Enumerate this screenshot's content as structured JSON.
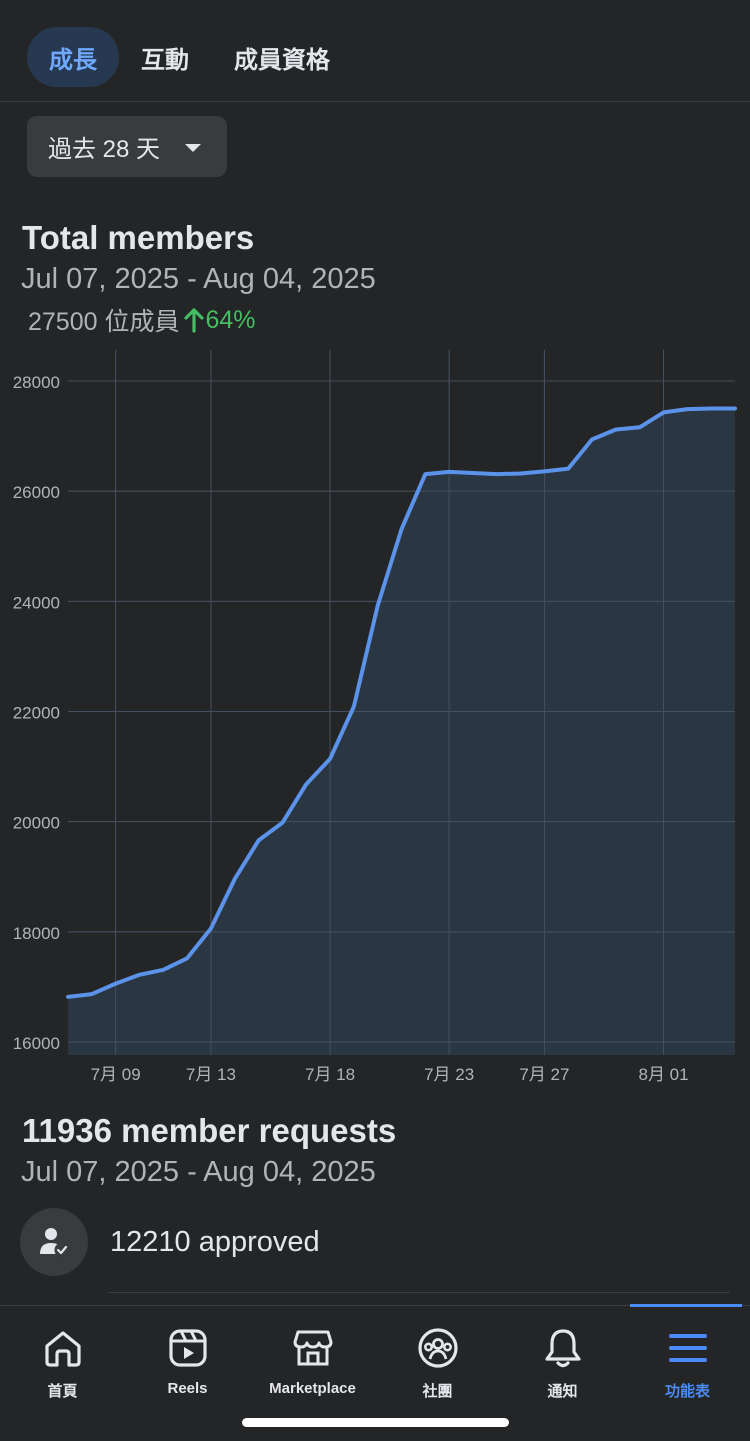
{
  "tabs": [
    {
      "label": "成長",
      "active": true
    },
    {
      "label": "互動",
      "active": false
    },
    {
      "label": "成員資格",
      "active": false
    }
  ],
  "range": {
    "label": "過去 28 天",
    "icon": "caret-down-icon"
  },
  "total_members": {
    "title": "Total members",
    "date_range": "Jul 07, 2025 - Aug 04, 2025",
    "count_text": "27500 位成員",
    "change_text": "64%",
    "change_icon": "arrow-up-icon",
    "change_color": "#45bd62"
  },
  "chart_data": {
    "type": "area",
    "x": [
      "7月 07",
      "7月 08",
      "7月 09",
      "7月 10",
      "7月 11",
      "7月 12",
      "7月 13",
      "7月 14",
      "7月 15",
      "7月 16",
      "7月 17",
      "7月 18",
      "7月 19",
      "7月 20",
      "7月 21",
      "7月 22",
      "7月 23",
      "7月 24",
      "7月 25",
      "7月 26",
      "7月 27",
      "7月 28",
      "7月 29",
      "7月 30",
      "7月 31",
      "8月 01",
      "8月 02",
      "8月 03",
      "8月 04"
    ],
    "series": [
      {
        "values": [
          16820,
          16870,
          17060,
          17220,
          17310,
          17520,
          18060,
          18960,
          19660,
          19980,
          20680,
          21140,
          22090,
          23920,
          25310,
          26310,
          26350,
          26330,
          26310,
          26320,
          26360,
          26410,
          26940,
          27120,
          27160,
          27430,
          27490,
          27500,
          27500
        ],
        "color": "#5b93ea",
        "fill": "#2c3847"
      }
    ],
    "xticks": [
      "7月 09",
      "7月 13",
      "7月 18",
      "7月 23",
      "7月 27",
      "8月 01"
    ],
    "yticks": [
      16000,
      18000,
      20000,
      22000,
      24000,
      26000,
      28000
    ],
    "ylim": [
      16000,
      28000
    ],
    "grid": true
  },
  "member_requests": {
    "title": "11936 member requests",
    "date_range": "Jul 07, 2025 - Aug 04, 2025",
    "approved_text": "12210 approved",
    "approved_icon": "person-check-icon"
  },
  "bottom_nav": [
    {
      "label": "首頁",
      "icon": "home-icon",
      "active": false
    },
    {
      "label": "Reels",
      "icon": "reels-icon",
      "active": false
    },
    {
      "label": "Marketplace",
      "icon": "marketplace-icon",
      "active": false
    },
    {
      "label": "社團",
      "icon": "groups-icon",
      "active": false
    },
    {
      "label": "通知",
      "icon": "bell-icon",
      "active": false
    },
    {
      "label": "功能表",
      "icon": "menu-icon",
      "active": true
    }
  ],
  "colors": {
    "accent": "#4a8bf5",
    "active_tab_bg": "#263951",
    "active_tab_text": "#6ea8ff",
    "line": "#5b93ea",
    "area": "#2c3847",
    "positive": "#45bd62"
  }
}
